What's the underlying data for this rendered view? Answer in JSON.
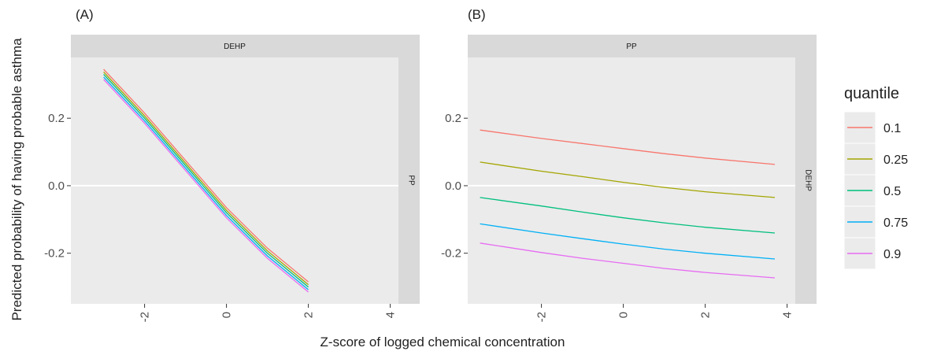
{
  "chart_data": {
    "type": "line",
    "ylabel": "Predicted probability of having probable asthma",
    "xlabel": "Z-score of logged chemical concentration",
    "ylim": [
      -0.35,
      0.38
    ],
    "xlim": [
      -3.8,
      4.2
    ],
    "y_ticks": [
      -0.2,
      0.0,
      0.2
    ],
    "y_tick_labels": [
      "-0.2",
      "0.0",
      "0.2"
    ],
    "x_ticks": [
      -2,
      0,
      2,
      4
    ],
    "x_tick_labels": [
      "-2",
      "0",
      "2",
      "4"
    ],
    "grid": false,
    "legend": {
      "title": "quantile",
      "placement": "right",
      "entries": [
        "0.1",
        "0.25",
        "0.5",
        "0.75",
        "0.9"
      ]
    },
    "colors": {
      "0.1": "#F8766D",
      "0.25": "#A3A500",
      "0.5": "#00BF7D",
      "0.75": "#00B0F6",
      "0.9": "#E76BF3"
    },
    "panels": [
      {
        "label": "(A)",
        "strip_top": "DEHP",
        "strip_right": "PP",
        "series": [
          {
            "name": "0.1",
            "x": [
              -3.0,
              -2.0,
              -1.0,
              0.0,
              1.0,
              2.0
            ],
            "y": [
              0.345,
              0.215,
              0.075,
              -0.065,
              -0.185,
              -0.285
            ]
          },
          {
            "name": "0.25",
            "x": [
              -3.0,
              -2.0,
              -1.0,
              0.0,
              1.0,
              2.0
            ],
            "y": [
              0.337,
              0.207,
              0.067,
              -0.073,
              -0.193,
              -0.293
            ]
          },
          {
            "name": "0.5",
            "x": [
              -3.0,
              -2.0,
              -1.0,
              0.0,
              1.0,
              2.0
            ],
            "y": [
              0.33,
              0.2,
              0.06,
              -0.08,
              -0.2,
              -0.3
            ]
          },
          {
            "name": "0.75",
            "x": [
              -3.0,
              -2.0,
              -1.0,
              0.0,
              1.0,
              2.0
            ],
            "y": [
              0.322,
              0.192,
              0.052,
              -0.088,
              -0.208,
              -0.308
            ]
          },
          {
            "name": "0.9",
            "x": [
              -3.0,
              -2.0,
              -1.0,
              0.0,
              1.0,
              2.0
            ],
            "y": [
              0.315,
              0.185,
              0.045,
              -0.095,
              -0.215,
              -0.315
            ]
          }
        ]
      },
      {
        "label": "(B)",
        "strip_top": "PP",
        "strip_right": "DEHP",
        "series": [
          {
            "name": "0.1",
            "x": [
              -3.5,
              -2.0,
              -1.0,
              0.0,
              1.0,
              2.0,
              3.7
            ],
            "y": [
              0.165,
              0.14,
              0.125,
              0.11,
              0.095,
              0.082,
              0.063
            ]
          },
          {
            "name": "0.25",
            "x": [
              -3.5,
              -2.0,
              -1.0,
              0.0,
              1.0,
              2.0,
              3.7
            ],
            "y": [
              0.07,
              0.043,
              0.027,
              0.01,
              -0.005,
              -0.018,
              -0.035
            ]
          },
          {
            "name": "0.5",
            "x": [
              -3.5,
              -2.0,
              -1.0,
              0.0,
              1.0,
              2.0,
              3.7
            ],
            "y": [
              -0.035,
              -0.06,
              -0.078,
              -0.095,
              -0.11,
              -0.123,
              -0.14
            ]
          },
          {
            "name": "0.75",
            "x": [
              -3.5,
              -2.0,
              -1.0,
              0.0,
              1.0,
              2.0,
              3.7
            ],
            "y": [
              -0.113,
              -0.14,
              -0.157,
              -0.173,
              -0.188,
              -0.2,
              -0.217
            ]
          },
          {
            "name": "0.9",
            "x": [
              -3.5,
              -2.0,
              -1.0,
              0.0,
              1.0,
              2.0,
              3.7
            ],
            "y": [
              -0.17,
              -0.198,
              -0.215,
              -0.23,
              -0.245,
              -0.257,
              -0.273
            ]
          }
        ]
      }
    ]
  }
}
